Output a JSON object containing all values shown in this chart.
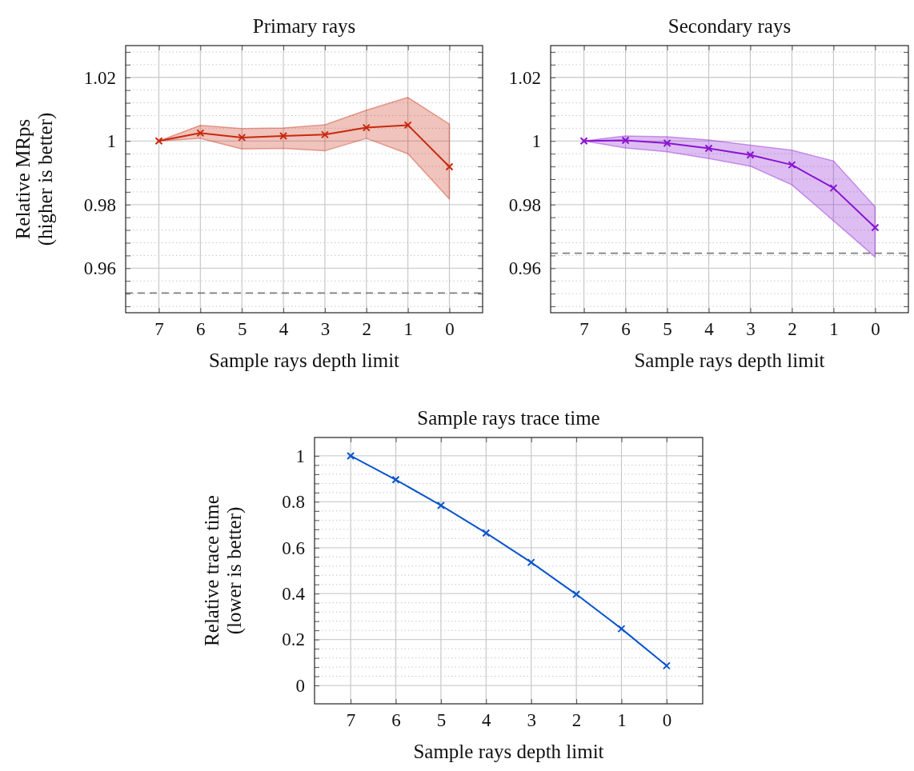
{
  "chart_data": [
    {
      "type": "line",
      "title": "Primary rays",
      "xlabel": "Sample rays depth limit",
      "ylabel": "Relative MRps\n(higher is better)",
      "categories": [
        "7",
        "6",
        "5",
        "4",
        "3",
        "2",
        "1",
        "0"
      ],
      "series": [
        {
          "color": "#c8290e",
          "values": [
            1.0,
            1.0025,
            1.0011,
            1.0016,
            1.002,
            1.0042,
            1.005,
            0.9919
          ],
          "upper": [
            1.0,
            1.0049,
            1.0039,
            1.0041,
            1.0051,
            1.0097,
            1.0137,
            1.0053
          ],
          "lower": [
            1.0,
            1.0008,
            0.9975,
            0.9977,
            0.9969,
            1.0008,
            0.996,
            0.9817
          ]
        }
      ],
      "ylim": [
        0.946,
        1.03
      ],
      "yticks": [
        {
          "value": 0.948,
          "label": null
        },
        {
          "value": 0.952,
          "label": null
        },
        {
          "value": 0.956,
          "label": null
        },
        0.96,
        {
          "value": 0.964,
          "label": null
        },
        {
          "value": 0.968,
          "label": null
        },
        {
          "value": 0.972,
          "label": null
        },
        {
          "value": 0.976,
          "label": null
        },
        0.98,
        {
          "value": 0.984,
          "label": null
        },
        {
          "value": 0.988,
          "label": null
        },
        {
          "value": 0.992,
          "label": null
        },
        {
          "value": 0.996,
          "label": null
        },
        1,
        {
          "value": 1.004,
          "label": null
        },
        {
          "value": 1.008,
          "label": null
        },
        {
          "value": 1.012,
          "label": null
        },
        {
          "value": 1.016,
          "label": null
        },
        1.02,
        {
          "value": 1.024,
          "label": null
        },
        {
          "value": 1.028,
          "label": null
        }
      ],
      "ref_lines": [
        {
          "axis": "y",
          "value": 0.9522,
          "color": "#7f7f7f",
          "line_style": "dashed"
        }
      ],
      "grid": true,
      "marker": "cross",
      "line_style": "solid"
    },
    {
      "type": "line",
      "title": "Secondary rays",
      "xlabel": "Sample rays depth limit",
      "categories": [
        "7",
        "6",
        "5",
        "4",
        "3",
        "2",
        "1",
        "0"
      ],
      "series": [
        {
          "color": "#8a14d2",
          "values": [
            1.0,
            1.0002,
            0.9993,
            0.9977,
            0.9956,
            0.9925,
            0.9852,
            0.9728
          ],
          "upper": [
            1.0,
            1.0016,
            1.0013,
            1.0003,
            0.9987,
            0.9971,
            0.9937,
            0.9793
          ],
          "lower": [
            1.0,
            0.9978,
            0.9966,
            0.9945,
            0.9921,
            0.9862,
            0.9749,
            0.9635
          ]
        }
      ],
      "ylim": [
        0.946,
        1.03
      ],
      "yticks": [
        {
          "value": 0.948,
          "label": null
        },
        {
          "value": 0.952,
          "label": null
        },
        {
          "value": 0.956,
          "label": null
        },
        0.96,
        {
          "value": 0.964,
          "label": null
        },
        {
          "value": 0.968,
          "label": null
        },
        {
          "value": 0.972,
          "label": null
        },
        {
          "value": 0.976,
          "label": null
        },
        0.98,
        {
          "value": 0.984,
          "label": null
        },
        {
          "value": 0.988,
          "label": null
        },
        {
          "value": 0.992,
          "label": null
        },
        {
          "value": 0.996,
          "label": null
        },
        1,
        {
          "value": 1.004,
          "label": null
        },
        {
          "value": 1.008,
          "label": null
        },
        {
          "value": 1.012,
          "label": null
        },
        {
          "value": 1.016,
          "label": null
        },
        1.02,
        {
          "value": 1.024,
          "label": null
        },
        {
          "value": 1.028,
          "label": null
        }
      ],
      "ref_lines": [
        {
          "axis": "y",
          "value": 0.9647,
          "color": "#7f7f7f",
          "line_style": "dashed"
        }
      ],
      "grid": true,
      "marker": "cross",
      "line_style": "solid"
    },
    {
      "type": "line",
      "title": "Sample rays trace time",
      "xlabel": "Sample rays depth limit",
      "ylabel": "Relative trace time\n(lower is better)",
      "categories": [
        "7",
        "6",
        "5",
        "4",
        "3",
        "2",
        "1",
        "0"
      ],
      "series": [
        {
          "color": "#0a55cc",
          "values": [
            1.0,
            0.896,
            0.784,
            0.664,
            0.536,
            0.397,
            0.247,
            0.086
          ]
        }
      ],
      "ylim": [
        -0.08,
        1.08
      ],
      "yticks": [
        0,
        {
          "value": 0.04,
          "label": null
        },
        {
          "value": 0.08,
          "label": null
        },
        {
          "value": 0.12,
          "label": null
        },
        {
          "value": 0.16,
          "label": null
        },
        0.2,
        {
          "value": 0.24,
          "label": null
        },
        {
          "value": 0.28,
          "label": null
        },
        {
          "value": 0.32,
          "label": null
        },
        {
          "value": 0.36,
          "label": null
        },
        0.4,
        {
          "value": 0.44,
          "label": null
        },
        {
          "value": 0.48,
          "label": null
        },
        {
          "value": 0.52,
          "label": null
        },
        {
          "value": 0.56,
          "label": null
        },
        0.6,
        {
          "value": 0.64,
          "label": null
        },
        {
          "value": 0.68,
          "label": null
        },
        {
          "value": 0.72,
          "label": null
        },
        {
          "value": 0.76,
          "label": null
        },
        0.8,
        {
          "value": 0.84,
          "label": null
        },
        {
          "value": 0.88,
          "label": null
        },
        {
          "value": 0.92,
          "label": null
        },
        {
          "value": 0.96,
          "label": null
        },
        1
      ],
      "grid": true,
      "marker": "cross",
      "line_style": "solid"
    }
  ]
}
